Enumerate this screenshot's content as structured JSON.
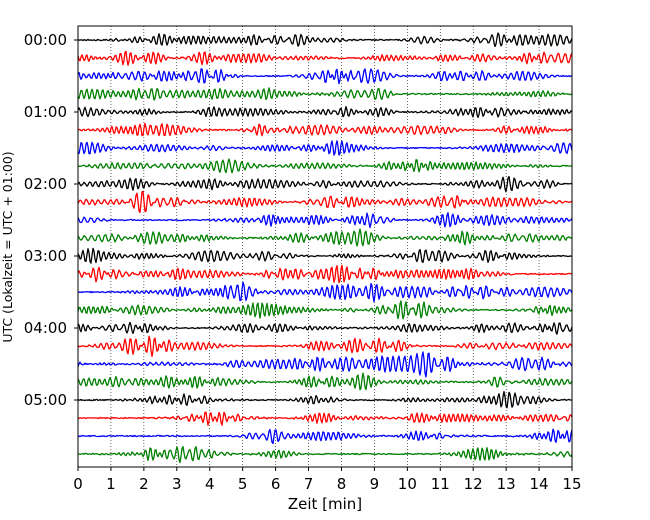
{
  "chart_data": {
    "type": "line",
    "xlabel": "Zeit  [min]",
    "ylabel": "UTC (Lokalzeit = UTC + 01:00)",
    "xlim": [
      0,
      15
    ],
    "x_ticks": [
      "0",
      "1",
      "2",
      "3",
      "4",
      "5",
      "6",
      "7",
      "8",
      "9",
      "10",
      "11",
      "12",
      "13",
      "14",
      "15"
    ],
    "y_ticks": [
      "00:00",
      "01:00",
      "02:00",
      "03:00",
      "04:00",
      "05:00"
    ],
    "trace_interval_min": 15,
    "trace_count": 24,
    "trace_colors": [
      "#000000",
      "#ff0000",
      "#0000ff",
      "#007f00"
    ],
    "grid": "vertical dotted at each minute",
    "series_description": "seismogram helicorder: one 15-minute trace per row, low-amplitude noise"
  }
}
